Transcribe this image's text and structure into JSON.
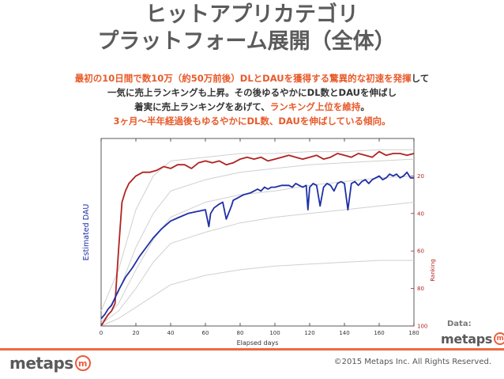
{
  "title": {
    "line1": "ヒットアプリカテゴリ",
    "line2": "プラットフォーム展開（全体）"
  },
  "summary": {
    "l1_a": "最初の10日間で数10万（約50万前後）DLとDAUを獲得する驚異的な初速を発揮",
    "l1_b": "して",
    "l2": "一気に売上ランキングも上昇。その後ゆるやかにDL数とDAUを伸ばし",
    "l3_a": "着実に売上ランキングをあげて、",
    "l3_b": "ランキング上位を維持",
    "l3_c": "。",
    "l4": "3ヶ月〜半年経過後もゆるやかにDL数、DAUを伸ばしている傾向。"
  },
  "data_label": "Data:",
  "brand": {
    "word": "metaps",
    "mark": "m"
  },
  "copyright": "©2015 Metaps Inc. All Rights Reserved.",
  "chart_data": {
    "type": "line",
    "xlabel": "Elapsed days",
    "ylabel_left": "Estimated DAU",
    "ylabel_right": "Ranking",
    "xlim": [
      0,
      180
    ],
    "x_ticks": [
      0,
      20,
      40,
      60,
      80,
      100,
      120,
      140,
      160,
      180
    ],
    "y_right_inverted": true,
    "y_right_ticks": [
      20,
      40,
      60,
      80,
      100
    ],
    "left_axis_ticks_shown": false,
    "grid": false,
    "colors": {
      "dau": "#1f2fa6",
      "ranking": "#b22222",
      "comparison": "#d0d0d0",
      "right_axis": "#b22222",
      "left_label": "#1f2fa6"
    },
    "series": [
      {
        "role": "dau",
        "axis": "left",
        "ylim": [
          0,
          100
        ],
        "x": [
          0,
          2,
          4,
          6,
          8,
          10,
          14,
          18,
          22,
          26,
          30,
          35,
          40,
          45,
          50,
          55,
          60,
          62,
          63,
          65,
          68,
          70,
          72,
          75,
          76,
          78,
          82,
          86,
          88,
          90,
          92,
          94,
          96,
          98,
          100,
          104,
          108,
          110,
          112,
          114,
          116,
          118,
          119,
          120,
          122,
          124,
          126,
          128,
          130,
          132,
          134,
          136,
          138,
          140,
          142,
          144,
          146,
          148,
          150,
          152,
          154,
          156,
          158,
          160,
          162,
          164,
          166,
          168,
          170,
          172,
          174,
          176,
          178,
          180
        ],
        "values": [
          4,
          6,
          9,
          11,
          15,
          19,
          26,
          31,
          37,
          42,
          47,
          52,
          56,
          58,
          60,
          61,
          62,
          53,
          60,
          63,
          65,
          66,
          57,
          64,
          67,
          68,
          70,
          71,
          72,
          73,
          72,
          74,
          73,
          74,
          74,
          75,
          75,
          74,
          76,
          75,
          74,
          75,
          62,
          74,
          76,
          75,
          64,
          74,
          76,
          75,
          72,
          76,
          77,
          76,
          62,
          76,
          77,
          75,
          77,
          78,
          76,
          78,
          79,
          80,
          78,
          79,
          81,
          80,
          81,
          79,
          80,
          82,
          79,
          79
        ]
      },
      {
        "role": "ranking",
        "axis": "right",
        "ylim": [
          100,
          0
        ],
        "x": [
          0,
          2,
          4,
          6,
          8,
          10,
          12,
          14,
          16,
          18,
          20,
          24,
          28,
          32,
          36,
          40,
          44,
          48,
          52,
          56,
          60,
          64,
          68,
          72,
          76,
          80,
          84,
          88,
          92,
          96,
          100,
          104,
          108,
          112,
          116,
          120,
          124,
          128,
          132,
          136,
          140,
          144,
          148,
          152,
          156,
          160,
          164,
          168,
          172,
          176,
          180
        ],
        "values": [
          100,
          97,
          94,
          92,
          88,
          60,
          34,
          28,
          24,
          22,
          20,
          18,
          18,
          17,
          15,
          16,
          14,
          14,
          16,
          13,
          12,
          13,
          12,
          14,
          13,
          11,
          10,
          11,
          10,
          12,
          11,
          10,
          9,
          10,
          11,
          10,
          9,
          11,
          10,
          8,
          9,
          10,
          8,
          9,
          10,
          7,
          9,
          8,
          8,
          9,
          8
        ]
      },
      {
        "role": "comparison-1",
        "axis": "left",
        "ylim": [
          0,
          100
        ],
        "x": [
          0,
          10,
          20,
          30,
          40,
          60,
          80,
          100,
          120,
          140,
          160,
          180
        ],
        "values": [
          8,
          30,
          62,
          80,
          88,
          90,
          92,
          92,
          93,
          93,
          94,
          94
        ]
      },
      {
        "role": "comparison-2",
        "axis": "left",
        "ylim": [
          0,
          100
        ],
        "x": [
          0,
          10,
          20,
          30,
          40,
          60,
          80,
          100,
          120,
          140,
          160,
          180
        ],
        "values": [
          3,
          18,
          42,
          60,
          72,
          78,
          82,
          84,
          86,
          87,
          88,
          89
        ]
      },
      {
        "role": "comparison-3",
        "axis": "left",
        "ylim": [
          0,
          100
        ],
        "x": [
          0,
          10,
          20,
          30,
          40,
          60,
          80,
          100,
          120,
          140,
          160,
          180
        ],
        "values": [
          2,
          12,
          30,
          46,
          58,
          66,
          70,
          72,
          75,
          77,
          79,
          80
        ]
      },
      {
        "role": "comparison-4",
        "axis": "left",
        "ylim": [
          0,
          100
        ],
        "x": [
          0,
          10,
          20,
          30,
          40,
          60,
          80,
          100,
          120,
          140,
          160,
          180
        ],
        "values": [
          1,
          8,
          20,
          34,
          44,
          50,
          55,
          58,
          60,
          62,
          64,
          66
        ]
      },
      {
        "role": "comparison-5",
        "axis": "left",
        "ylim": [
          0,
          100
        ],
        "x": [
          0,
          10,
          20,
          30,
          40,
          60,
          80,
          100,
          120,
          140,
          160,
          180
        ],
        "values": [
          0,
          4,
          10,
          16,
          22,
          27,
          30,
          32,
          33,
          34,
          35,
          35
        ]
      }
    ]
  }
}
